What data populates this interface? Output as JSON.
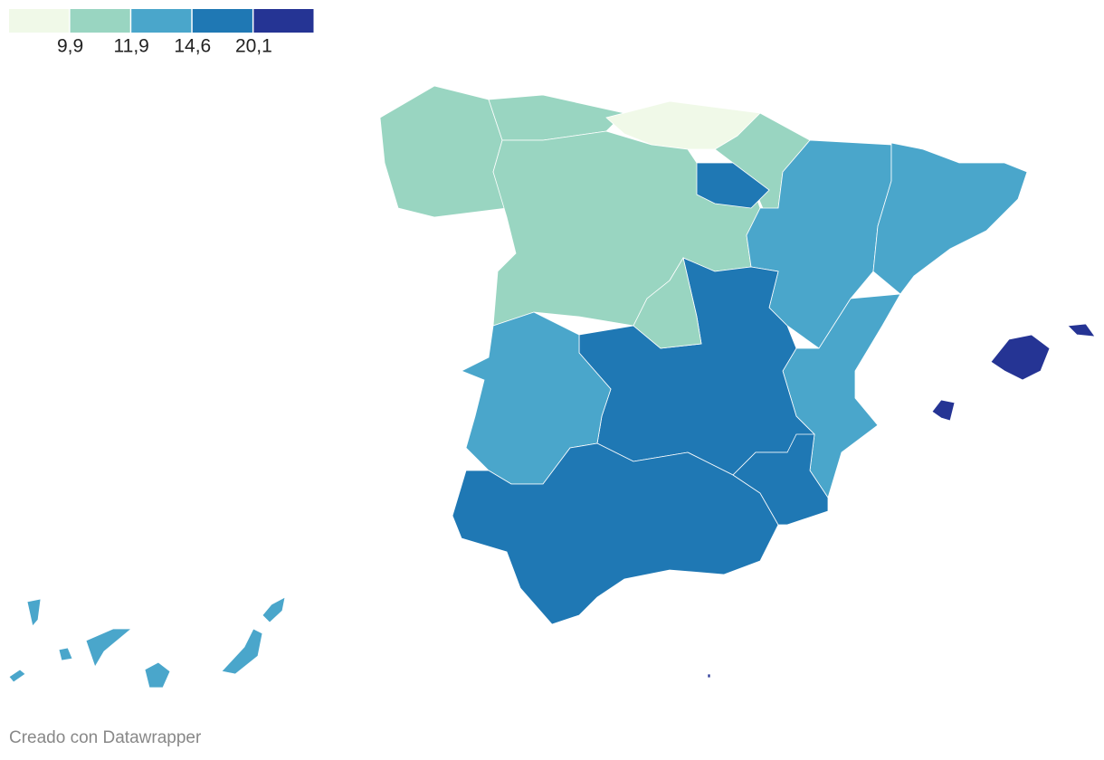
{
  "legend": {
    "colors": [
      "#f0f9e8",
      "#99d5c1",
      "#4aa6cb",
      "#1f78b4",
      "#253494"
    ],
    "ticks": [
      {
        "value": 9.9,
        "label": "9,9"
      },
      {
        "value": 11.9,
        "label": "11,9"
      },
      {
        "value": 14.6,
        "label": "14,6"
      },
      {
        "value": 20.1,
        "label": "20,1"
      }
    ]
  },
  "footer": "Creado con Datawrapper"
}
